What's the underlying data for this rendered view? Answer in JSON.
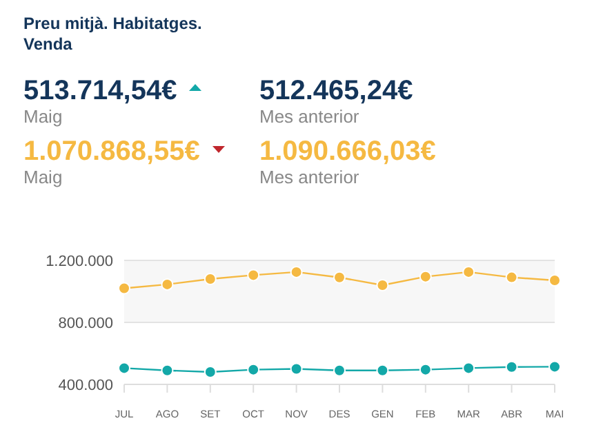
{
  "chart_data": {
    "type": "line",
    "title": "Preu mitjà. Habitatges. Venda",
    "annotations": [
      "513.714,54€",
      "Maig",
      "512.465,24€",
      "Mes anterior",
      "1.070.868,55€",
      "Maig",
      "1.090.666,03€",
      "Mes anterior"
    ],
    "categories": [
      "JUL",
      "AGO",
      "SET",
      "OCT",
      "NOV",
      "DES",
      "GEN",
      "FEB",
      "MAR",
      "ABR",
      "MAI"
    ],
    "series": [
      {
        "color": "#f5b942",
        "values": [
          1020000,
          1045000,
          1080000,
          1105000,
          1125000,
          1090000,
          1040000,
          1095000,
          1125000,
          1090666,
          1070868
        ]
      },
      {
        "color": "#13a8a8",
        "values": [
          505000,
          490000,
          480000,
          495000,
          500000,
          490000,
          490000,
          495000,
          505000,
          512465,
          513714
        ]
      }
    ],
    "ylim": [
      400000,
      1200000
    ],
    "yticks": [
      {
        "value": 400000,
        "label": "400.000"
      },
      {
        "value": 800000,
        "label": "800.000"
      },
      {
        "value": 1200000,
        "label": "1.200.000"
      }
    ],
    "bands": [
      {
        "axis": "y",
        "from": 800000,
        "to": 1200000,
        "color": "#f7f7f7"
      }
    ],
    "grid": "y",
    "marker": "circle",
    "line_style": "solid"
  }
}
